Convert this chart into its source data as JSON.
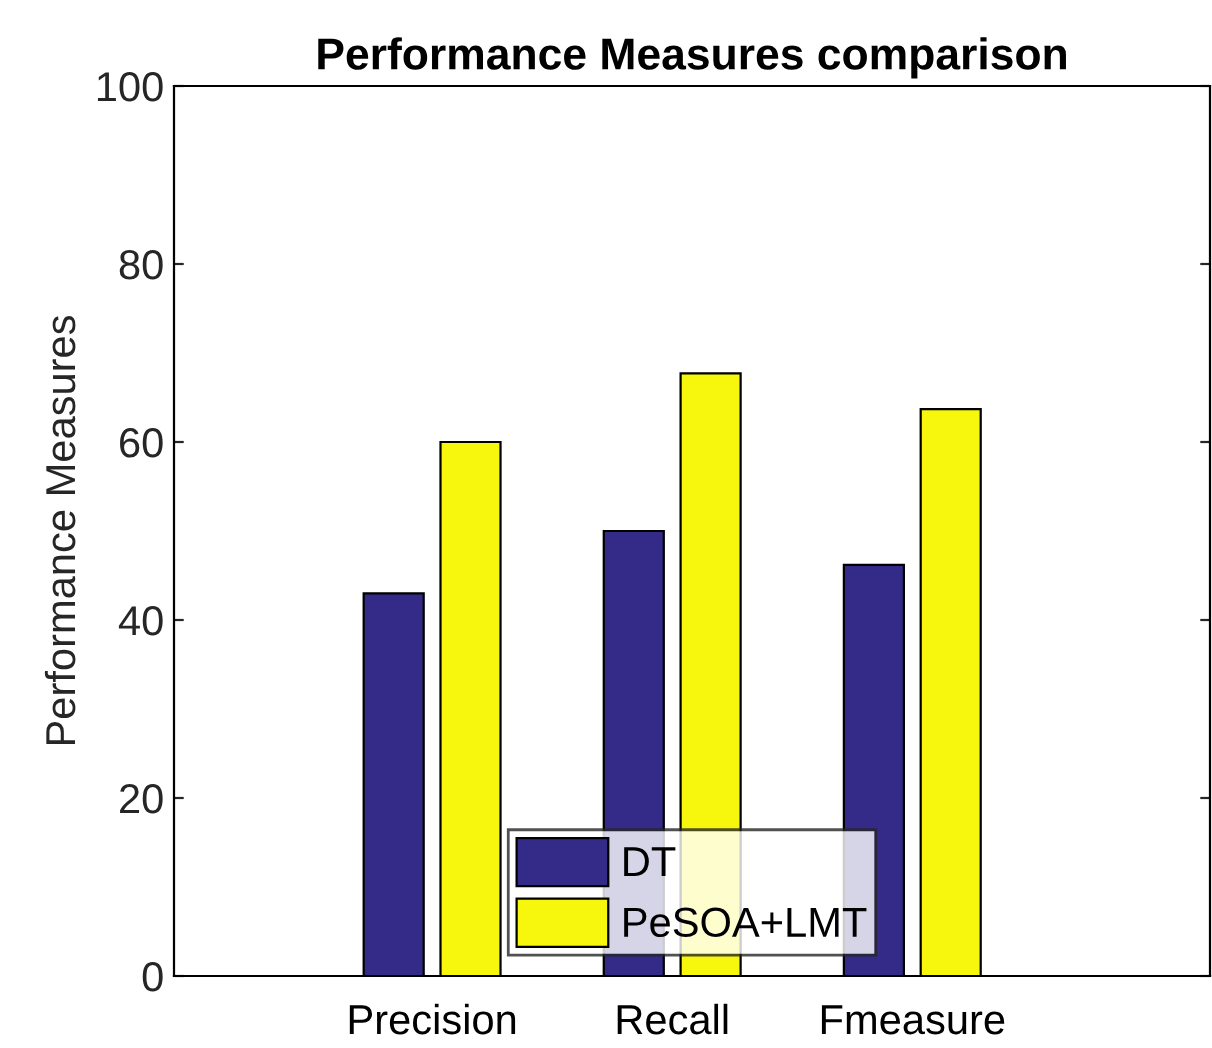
{
  "chart_data": {
    "type": "bar",
    "title": "Performance Measures comparison",
    "ylabel": "Performance Measures",
    "categories": [
      "Precision",
      "Recall",
      "Fmeasure"
    ],
    "series": [
      {
        "name": "DT",
        "color": "#342a87",
        "values": [
          43,
          50,
          46.2
        ]
      },
      {
        "name": "PeSOA+LMT",
        "color": "#f7f70e",
        "values": [
          60,
          67.7,
          63.7
        ]
      }
    ],
    "ylim": [
      0,
      100
    ],
    "yticks": [
      0,
      20,
      40,
      60,
      80,
      100
    ],
    "grid": false,
    "legend": "bottom"
  }
}
